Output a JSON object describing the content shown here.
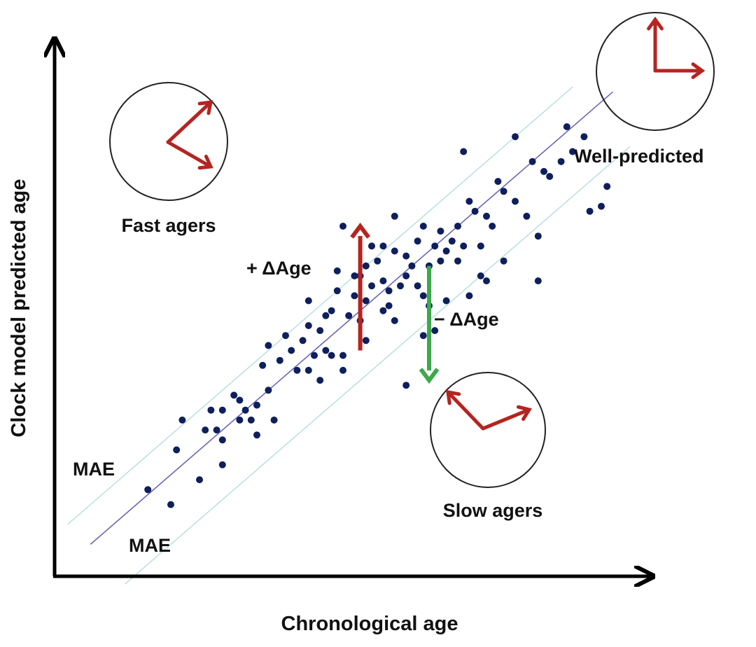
{
  "chart_data": {
    "type": "scatter",
    "title": "",
    "xlabel": "Chronological age",
    "ylabel": "Clock model predicted age",
    "xlim": [
      0,
      100
    ],
    "ylim": [
      0,
      100
    ],
    "grid": false,
    "diagonal_line": {
      "from": [
        6,
        6
      ],
      "to": [
        97,
        97
      ],
      "color": "#6a66b8"
    },
    "mae_band": {
      "offset": 8,
      "color": "#b4dede"
    },
    "points": [
      [
        16,
        17
      ],
      [
        20,
        14
      ],
      [
        21,
        25
      ],
      [
        25,
        19
      ],
      [
        26,
        29
      ],
      [
        27,
        33
      ],
      [
        28,
        29
      ],
      [
        29,
        27
      ],
      [
        29,
        22
      ],
      [
        31,
        36
      ],
      [
        32,
        35
      ],
      [
        32,
        31
      ],
      [
        33,
        33
      ],
      [
        34,
        31
      ],
      [
        35,
        34
      ],
      [
        36,
        42
      ],
      [
        37,
        37
      ],
      [
        38,
        31
      ],
      [
        39,
        43
      ],
      [
        40,
        48
      ],
      [
        41,
        45
      ],
      [
        42,
        41
      ],
      [
        43,
        47
      ],
      [
        44,
        50
      ],
      [
        44,
        41
      ],
      [
        45,
        44
      ],
      [
        46,
        49
      ],
      [
        46,
        39
      ],
      [
        47,
        52
      ],
      [
        47,
        45
      ],
      [
        48,
        53
      ],
      [
        49,
        61
      ],
      [
        49,
        57
      ],
      [
        50,
        44
      ],
      [
        50,
        41
      ],
      [
        51,
        52
      ],
      [
        52,
        56
      ],
      [
        53,
        60
      ],
      [
        53,
        51
      ],
      [
        54,
        47
      ],
      [
        54,
        55
      ],
      [
        55,
        58
      ],
      [
        55,
        66
      ],
      [
        56,
        63
      ],
      [
        57,
        59
      ],
      [
        57,
        53
      ],
      [
        58,
        57
      ],
      [
        59,
        65
      ],
      [
        59,
        72
      ],
      [
        59,
        51
      ],
      [
        60,
        58
      ],
      [
        61,
        60
      ],
      [
        61,
        64
      ],
      [
        62,
        62
      ],
      [
        63,
        67
      ],
      [
        63,
        58
      ],
      [
        64,
        56
      ],
      [
        64,
        70
      ],
      [
        65,
        62
      ],
      [
        65,
        54
      ],
      [
        66,
        66
      ],
      [
        66,
        49
      ],
      [
        67,
        69
      ],
      [
        67,
        63
      ],
      [
        68,
        65
      ],
      [
        68,
        55
      ],
      [
        69,
        67
      ],
      [
        70,
        70
      ],
      [
        70,
        63
      ],
      [
        71,
        66
      ],
      [
        72,
        75
      ],
      [
        72,
        56
      ],
      [
        73,
        73
      ],
      [
        74,
        66
      ],
      [
        75,
        72
      ],
      [
        75,
        59
      ],
      [
        76,
        70
      ],
      [
        77,
        79
      ],
      [
        78,
        77
      ],
      [
        78,
        63
      ],
      [
        80,
        75
      ],
      [
        80,
        88
      ],
      [
        82,
        72
      ],
      [
        83,
        83
      ],
      [
        84,
        68
      ],
      [
        85,
        81
      ],
      [
        86,
        80
      ],
      [
        88,
        83
      ],
      [
        89,
        90
      ],
      [
        90,
        85
      ],
      [
        92,
        88
      ],
      [
        93,
        73
      ],
      [
        95,
        74
      ],
      [
        96,
        78
      ],
      [
        71,
        85
      ],
      [
        50,
        70
      ],
      [
        44,
        55
      ],
      [
        61,
        38
      ],
      [
        37,
        46
      ],
      [
        22,
        31
      ],
      [
        57,
        66
      ],
      [
        52,
        60
      ],
      [
        84,
        59
      ],
      [
        64,
        48
      ],
      [
        35,
        28
      ],
      [
        58,
        54
      ],
      [
        48,
        44
      ],
      [
        29,
        33
      ],
      [
        54,
        62
      ],
      [
        74,
        60
      ]
    ],
    "point_color": "#0e1f5c",
    "arrows": [
      {
        "label": "+ ΔAge",
        "x": 53,
        "from_y": 45,
        "to_y": 70,
        "color": "#b52420"
      },
      {
        "label": "− ΔAge",
        "x": 65,
        "from_y": 62,
        "to_y": 39,
        "color": "#3aaa4a"
      }
    ],
    "clock_color": "#b52420",
    "annotations": {
      "fast": "Fast agers",
      "slow": "Slow agers",
      "well": "Well-predicted",
      "mae_upper": "MAE",
      "mae_lower": "MAE"
    }
  }
}
